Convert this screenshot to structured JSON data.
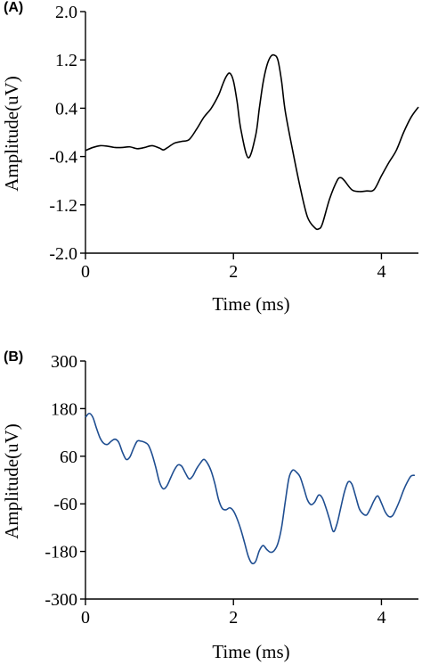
{
  "chart_data": [
    {
      "type": "line",
      "panel_label": "(A)",
      "xlabel": "Time (ms)",
      "ylabel": "Amplitude(uV)",
      "xlim": [
        0,
        4.5
      ],
      "ylim": [
        -2.0,
        2.0
      ],
      "x_ticks": [
        0,
        2,
        4
      ],
      "x_tick_labels": [
        "0",
        "2",
        "4"
      ],
      "y_ticks": [
        2.0,
        1.2,
        0.4,
        -0.4,
        -1.2,
        -2.0
      ],
      "y_tick_labels": [
        "2.0",
        "1.2",
        "0.4",
        "-0.4",
        "-1.2",
        "-2.0"
      ],
      "grid": false,
      "series": [
        {
          "color": "#000000",
          "x": [
            0.0,
            0.1,
            0.2,
            0.3,
            0.4,
            0.5,
            0.6,
            0.7,
            0.8,
            0.9,
            1.0,
            1.05,
            1.1,
            1.2,
            1.3,
            1.4,
            1.5,
            1.6,
            1.7,
            1.8,
            1.85,
            1.9,
            1.95,
            2.0,
            2.05,
            2.1,
            2.2,
            2.3,
            2.35,
            2.4,
            2.45,
            2.5,
            2.55,
            2.6,
            2.65,
            2.7,
            2.8,
            2.9,
            3.0,
            3.1,
            3.15,
            3.2,
            3.3,
            3.4,
            3.45,
            3.5,
            3.6,
            3.7,
            3.8,
            3.9,
            4.0,
            4.1,
            4.2,
            4.3,
            4.4,
            4.5
          ],
          "y": [
            -0.3,
            -0.25,
            -0.22,
            -0.23,
            -0.25,
            -0.25,
            -0.24,
            -0.27,
            -0.25,
            -0.22,
            -0.26,
            -0.29,
            -0.26,
            -0.18,
            -0.15,
            -0.12,
            0.05,
            0.25,
            0.4,
            0.62,
            0.78,
            0.92,
            0.98,
            0.85,
            0.5,
            0.05,
            -0.42,
            -0.05,
            0.4,
            0.82,
            1.1,
            1.25,
            1.28,
            1.2,
            0.85,
            0.35,
            -0.3,
            -0.9,
            -1.4,
            -1.58,
            -1.6,
            -1.52,
            -1.1,
            -0.8,
            -0.75,
            -0.8,
            -0.95,
            -0.98,
            -0.97,
            -0.95,
            -0.72,
            -0.5,
            -0.3,
            0.0,
            0.25,
            0.42
          ]
        }
      ]
    },
    {
      "type": "line",
      "panel_label": "(B)",
      "xlabel": "Time (ms)",
      "ylabel": "Amplitude(uV)",
      "xlim": [
        0,
        4.5
      ],
      "ylim": [
        -300,
        300
      ],
      "x_ticks": [
        0,
        2,
        4
      ],
      "x_tick_labels": [
        "0",
        "2",
        "4"
      ],
      "y_ticks": [
        300,
        180,
        60,
        -60,
        -180,
        -300
      ],
      "y_tick_labels": [
        "300",
        "180",
        "60",
        "-60",
        "-180",
        "-300"
      ],
      "grid": false,
      "series": [
        {
          "color": "#1f4e91",
          "x": [
            0.0,
            0.05,
            0.1,
            0.15,
            0.2,
            0.25,
            0.3,
            0.35,
            0.4,
            0.45,
            0.5,
            0.55,
            0.6,
            0.65,
            0.7,
            0.75,
            0.8,
            0.85,
            0.9,
            0.95,
            1.0,
            1.05,
            1.1,
            1.15,
            1.2,
            1.25,
            1.3,
            1.35,
            1.4,
            1.45,
            1.5,
            1.55,
            1.6,
            1.65,
            1.7,
            1.75,
            1.8,
            1.85,
            1.9,
            1.95,
            2.0,
            2.05,
            2.1,
            2.15,
            2.2,
            2.25,
            2.3,
            2.35,
            2.4,
            2.45,
            2.5,
            2.55,
            2.6,
            2.65,
            2.7,
            2.75,
            2.8,
            2.85,
            2.9,
            2.95,
            3.0,
            3.05,
            3.1,
            3.15,
            3.2,
            3.25,
            3.3,
            3.35,
            3.4,
            3.45,
            3.5,
            3.55,
            3.6,
            3.65,
            3.7,
            3.75,
            3.8,
            3.85,
            3.9,
            3.95,
            4.0,
            4.05,
            4.1,
            4.15,
            4.2,
            4.25,
            4.3,
            4.35,
            4.4,
            4.45
          ],
          "y": [
            158,
            168,
            158,
            130,
            105,
            92,
            90,
            98,
            103,
            95,
            70,
            52,
            58,
            80,
            98,
            98,
            95,
            88,
            65,
            32,
            -5,
            -22,
            -15,
            5,
            25,
            38,
            35,
            18,
            3,
            10,
            28,
            42,
            52,
            42,
            22,
            -10,
            -50,
            -72,
            -75,
            -70,
            -78,
            -98,
            -125,
            -158,
            -192,
            -210,
            -205,
            -178,
            -165,
            -175,
            -182,
            -178,
            -160,
            -120,
            -55,
            5,
            25,
            20,
            8,
            -20,
            -50,
            -62,
            -55,
            -38,
            -45,
            -70,
            -100,
            -130,
            -110,
            -70,
            -30,
            -5,
            -10,
            -40,
            -72,
            -85,
            -88,
            -72,
            -52,
            -40,
            -58,
            -80,
            -92,
            -90,
            -72,
            -50,
            -25,
            -5,
            10,
            12
          ]
        }
      ]
    }
  ]
}
